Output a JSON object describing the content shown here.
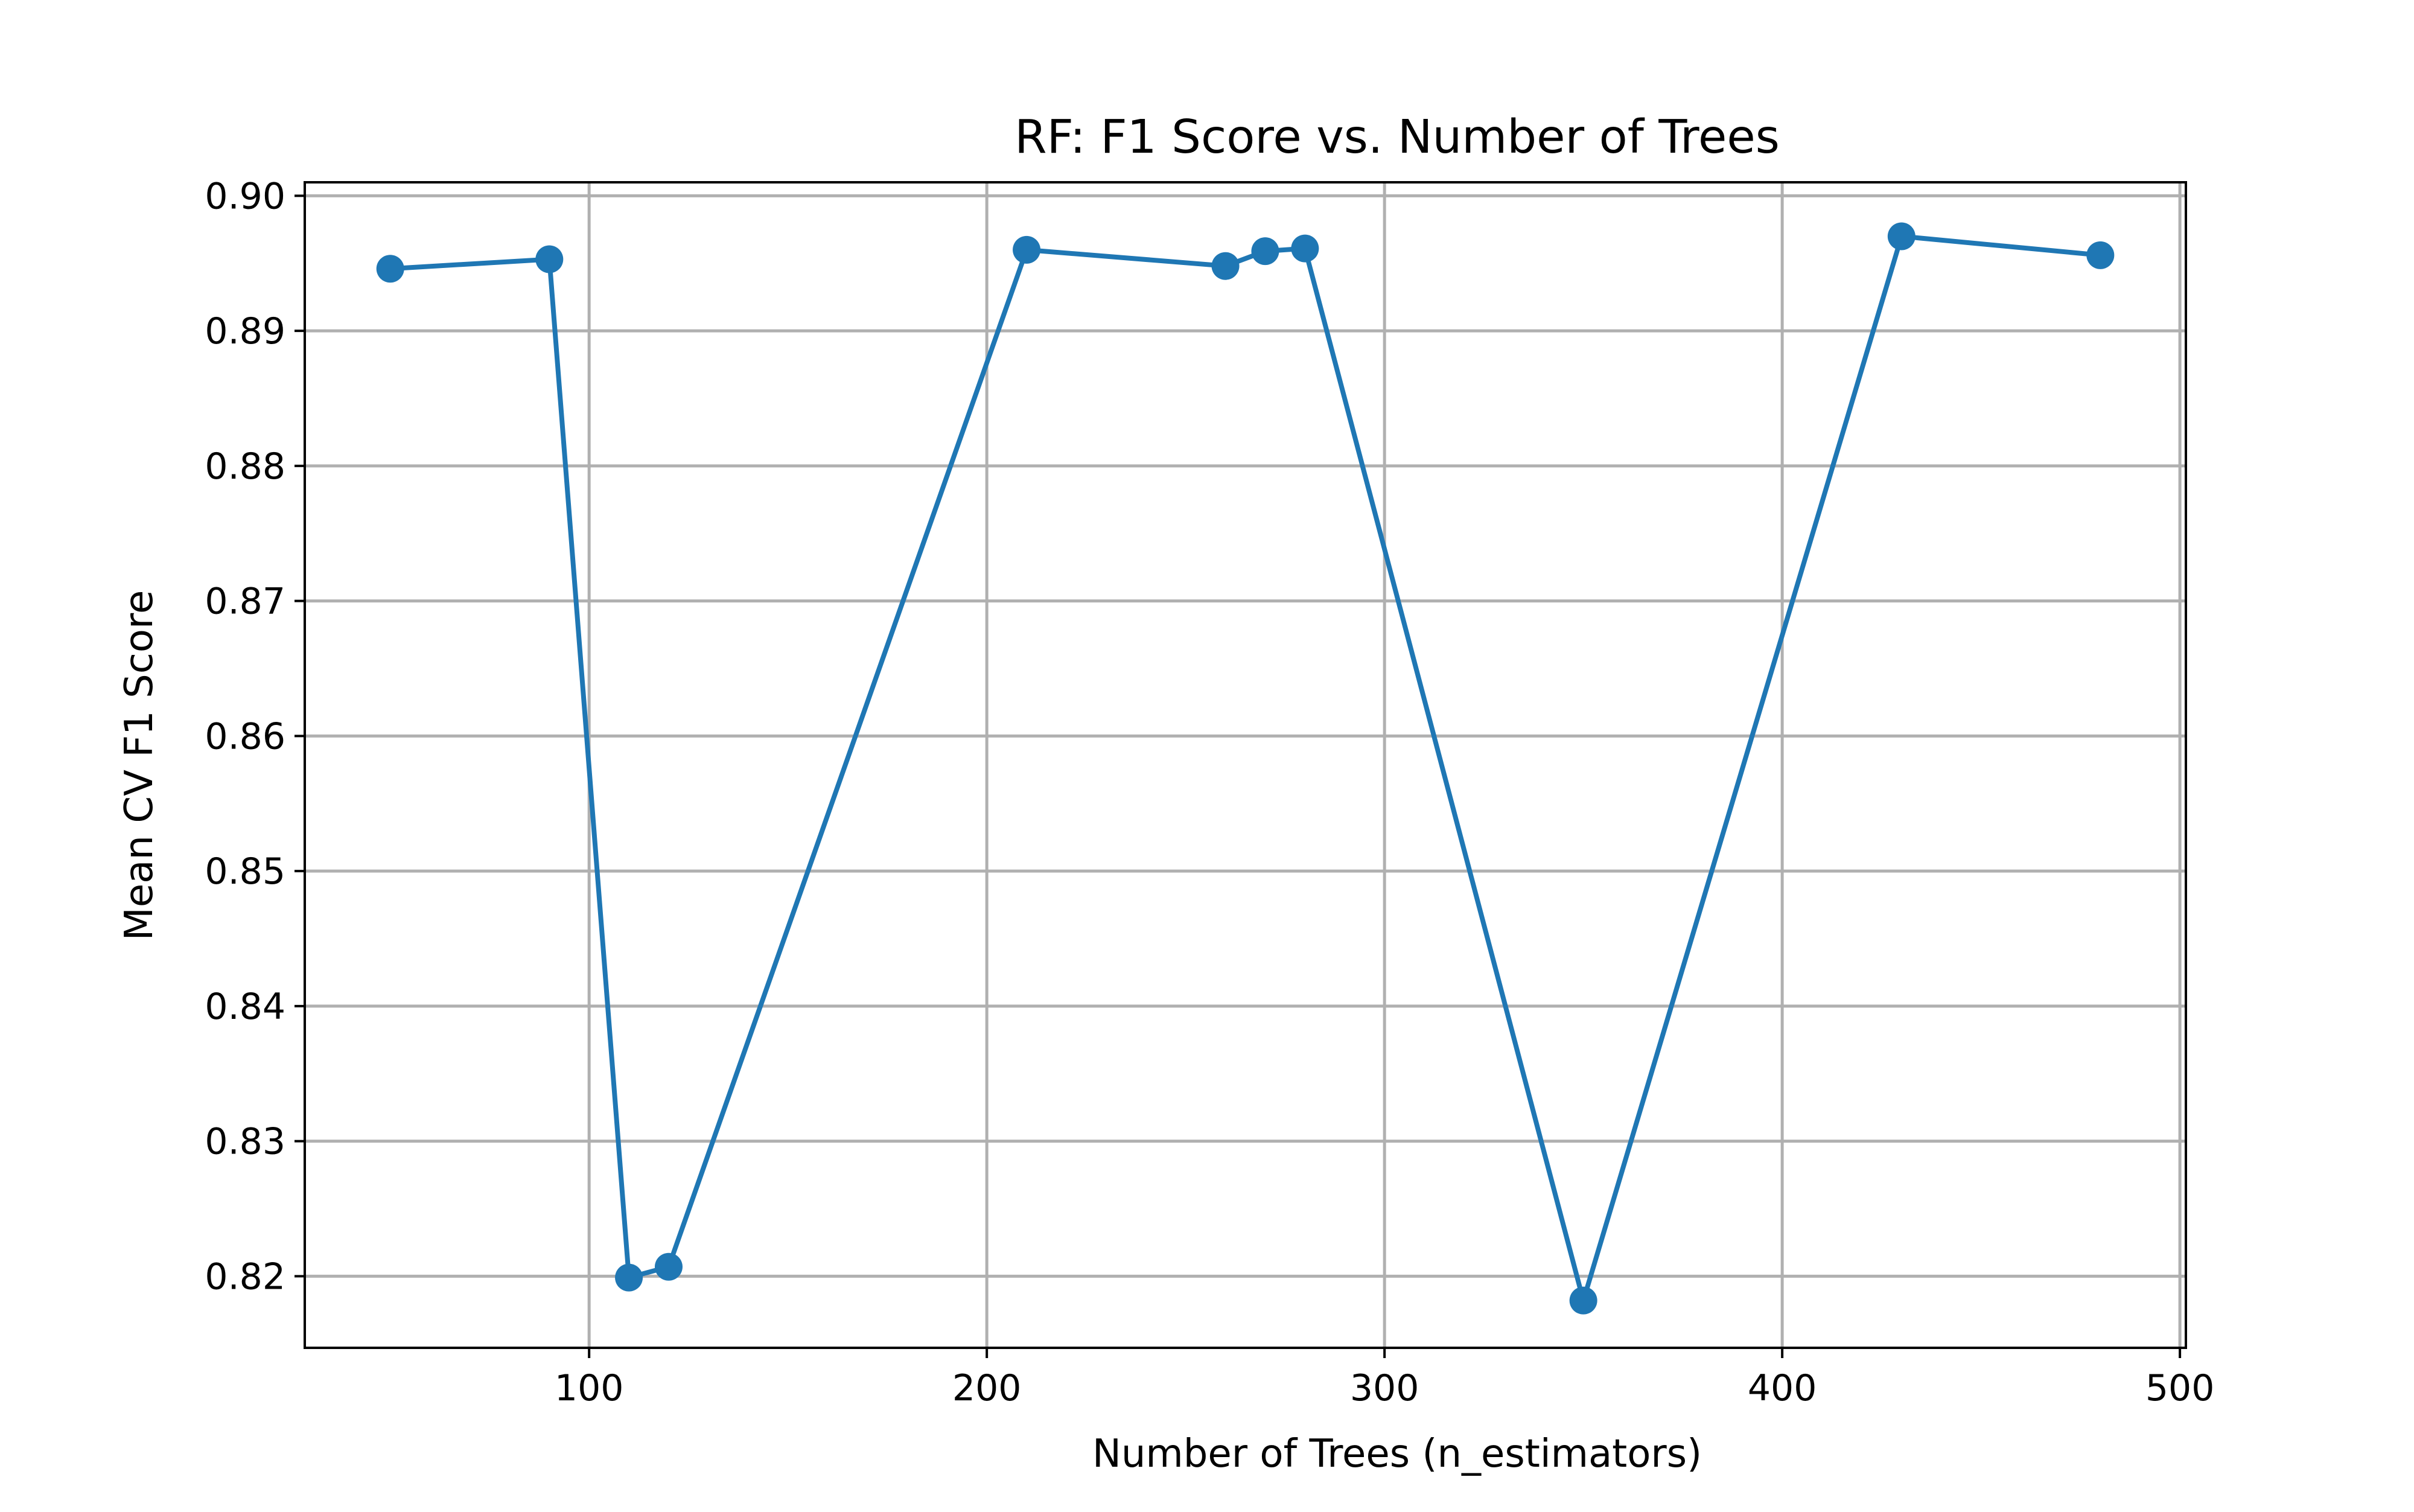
{
  "chart_data": {
    "type": "line",
    "title": "RF: F1 Score vs. Number of Trees",
    "xlabel": "Number of Trees (n_estimators)",
    "ylabel": "Mean CV F1 Score",
    "xlim": [
      28.5,
      501.5
    ],
    "ylim": [
      0.8147,
      0.901
    ],
    "xticks": [
      100,
      200,
      300,
      400,
      500
    ],
    "xtick_labels": [
      "100",
      "200",
      "300",
      "400",
      "500"
    ],
    "yticks": [
      0.82,
      0.83,
      0.84,
      0.85,
      0.86,
      0.87,
      0.88,
      0.89,
      0.9
    ],
    "ytick_labels": [
      "0.82",
      "0.83",
      "0.84",
      "0.85",
      "0.86",
      "0.87",
      "0.88",
      "0.89",
      "0.90"
    ],
    "grid": true,
    "color": "#1f77b4",
    "marker": "circle",
    "x": [
      50,
      90,
      110,
      120,
      210,
      260,
      270,
      280,
      350,
      430,
      480
    ],
    "y": [
      0.8946,
      0.8953,
      0.8199,
      0.8207,
      0.896,
      0.8948,
      0.8959,
      0.8961,
      0.8182,
      0.897,
      0.8956
    ]
  }
}
